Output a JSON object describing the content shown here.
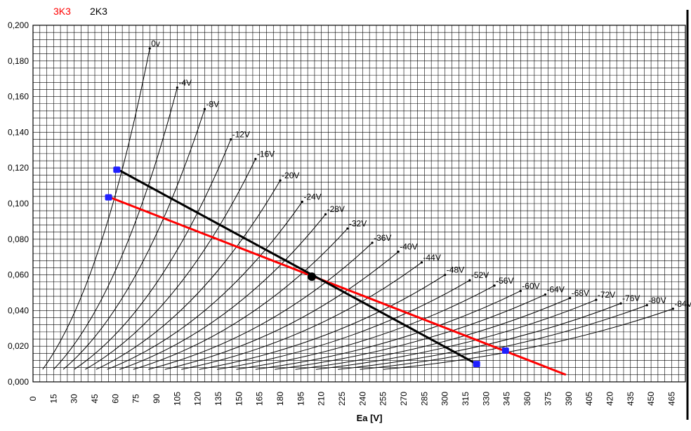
{
  "chart_data": {
    "type": "line",
    "xlabel": "Ea [V]",
    "ylabel": "",
    "xlim": [
      0,
      475
    ],
    "ylim": [
      0,
      0.2
    ],
    "x_ticks": [
      "0",
      "15",
      "30",
      "45",
      "60",
      "75",
      "90",
      "105",
      "120",
      "135",
      "150",
      "165",
      "180",
      "195",
      "210",
      "225",
      "240",
      "255",
      "270",
      "285",
      "300",
      "315",
      "330",
      "345",
      "360",
      "375",
      "390",
      "405",
      "420",
      "435",
      "450",
      "465"
    ],
    "y_ticks": [
      "0,000",
      "0,020",
      "0,040",
      "0,060",
      "0,080",
      "0,100",
      "0,120",
      "0,140",
      "0,160",
      "0,180",
      "0,200"
    ],
    "grid": true,
    "legend": [
      {
        "name": "3K3",
        "color": "#ff0000"
      },
      {
        "name": "2K3",
        "color": "#000000"
      }
    ],
    "grid_curves": [
      {
        "label": "0v",
        "x": [
          7,
          85
        ],
        "y": [
          0.007,
          0.187
        ]
      },
      {
        "label": "-4V",
        "x": [
          15,
          105
        ],
        "y": [
          0.007,
          0.165
        ]
      },
      {
        "label": "-8V",
        "x": [
          22,
          125
        ],
        "y": [
          0.007,
          0.153
        ]
      },
      {
        "label": "-12V",
        "x": [
          30,
          144
        ],
        "y": [
          0.007,
          0.136
        ]
      },
      {
        "label": "-16V",
        "x": [
          38,
          162
        ],
        "y": [
          0.007,
          0.125
        ]
      },
      {
        "label": "-20V",
        "x": [
          46,
          180
        ],
        "y": [
          0.007,
          0.113
        ]
      },
      {
        "label": "-24V",
        "x": [
          54,
          196
        ],
        "y": [
          0.007,
          0.101
        ]
      },
      {
        "label": "-28V",
        "x": [
          63,
          213
        ],
        "y": [
          0.007,
          0.094
        ]
      },
      {
        "label": "-32V",
        "x": [
          73,
          229
        ],
        "y": [
          0.007,
          0.086
        ]
      },
      {
        "label": "-36V",
        "x": [
          84,
          247
        ],
        "y": [
          0.007,
          0.078
        ]
      },
      {
        "label": "-40V",
        "x": [
          96,
          266
        ],
        "y": [
          0.007,
          0.073
        ]
      },
      {
        "label": "-44V",
        "x": [
          108,
          283
        ],
        "y": [
          0.007,
          0.067
        ]
      },
      {
        "label": "-48V",
        "x": [
          121,
          300
        ],
        "y": [
          0.007,
          0.06
        ]
      },
      {
        "label": "-52V",
        "x": [
          134,
          318
        ],
        "y": [
          0.007,
          0.057
        ]
      },
      {
        "label": "-56V",
        "x": [
          148,
          336
        ],
        "y": [
          0.007,
          0.054
        ]
      },
      {
        "label": "-60V",
        "x": [
          162,
          355
        ],
        "y": [
          0.007,
          0.051
        ]
      },
      {
        "label": "-64V",
        "x": [
          176,
          373
        ],
        "y": [
          0.007,
          0.049
        ]
      },
      {
        "label": "-68V",
        "x": [
          191,
          391
        ],
        "y": [
          0.007,
          0.047
        ]
      },
      {
        "label": "-72V",
        "x": [
          206,
          410
        ],
        "y": [
          0.007,
          0.046
        ]
      },
      {
        "label": "-76V",
        "x": [
          222,
          428
        ],
        "y": [
          0.007,
          0.044
        ]
      },
      {
        "label": "-80V",
        "x": [
          238,
          447
        ],
        "y": [
          0.007,
          0.043
        ]
      },
      {
        "label": "-84V",
        "x": [
          255,
          466
        ],
        "y": [
          0.007,
          0.041
        ]
      }
    ],
    "load_lines": [
      {
        "name": "3K3",
        "color": "#ff0000",
        "x": [
          56,
          388
        ],
        "y": [
          0.1035,
          0.004
        ]
      },
      {
        "name": "2K3",
        "color": "#000000",
        "x": [
          62,
          323
        ],
        "y": [
          0.119,
          0.01
        ]
      }
    ],
    "points": [
      {
        "series": "2K3",
        "x": 61,
        "y": 0.119,
        "color": "#1f1fff"
      },
      {
        "series": "3K3",
        "x": 55,
        "y": 0.1035,
        "color": "#1f1fff"
      },
      {
        "series": "operating-point",
        "x": 203,
        "y": 0.059,
        "color": "#000000"
      },
      {
        "series": "2K3",
        "x": 323,
        "y": 0.01,
        "color": "#1f1fff"
      },
      {
        "series": "3K3",
        "x": 344,
        "y": 0.0175,
        "color": "#1f1fff"
      }
    ]
  }
}
